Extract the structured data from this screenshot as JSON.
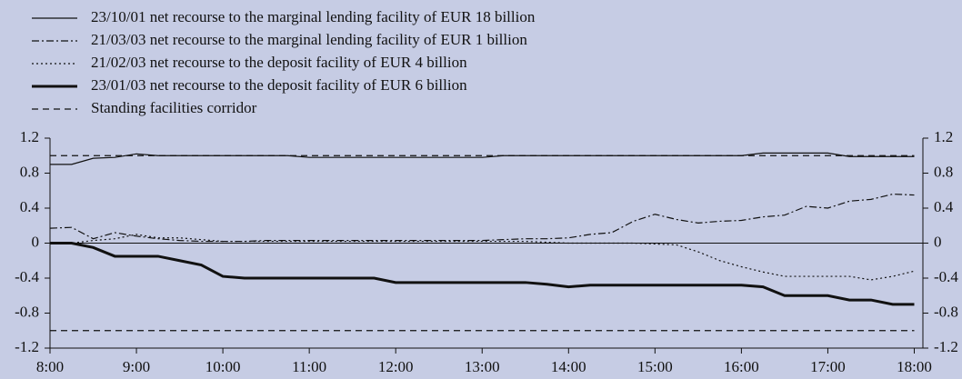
{
  "chart_data": {
    "type": "line",
    "x": [
      8,
      8.25,
      8.5,
      8.75,
      9,
      9.25,
      9.5,
      9.75,
      10,
      10.25,
      10.5,
      10.75,
      11,
      11.25,
      11.5,
      11.75,
      12,
      12.25,
      12.5,
      12.75,
      13,
      13.25,
      13.5,
      13.75,
      14,
      14.25,
      14.5,
      14.75,
      15,
      15.25,
      15.5,
      15.75,
      16,
      16.25,
      16.5,
      16.75,
      17,
      17.25,
      17.5,
      17.75,
      18
    ],
    "series": [
      {
        "name": "23/10/01 net recourse to the marginal lending facility of EUR 18 billion",
        "color": "#111",
        "dash": "none",
        "width": 1.2,
        "values": [
          0.9,
          0.9,
          0.97,
          0.98,
          1.02,
          1.0,
          1.0,
          1.0,
          1.0,
          1.0,
          1.0,
          1.0,
          0.98,
          0.98,
          0.98,
          0.98,
          0.98,
          0.98,
          0.98,
          0.98,
          0.98,
          1.0,
          1.0,
          1.0,
          1.0,
          1.0,
          1.0,
          1.0,
          1.0,
          1.0,
          1.0,
          1.0,
          1.0,
          1.03,
          1.03,
          1.03,
          1.03,
          0.99,
          0.99,
          0.99,
          0.99
        ]
      },
      {
        "name": "21/03/03 net recourse to the marginal lending facility of EUR 1 billion",
        "color": "#111",
        "dash": "8 3 2 3",
        "width": 1.2,
        "values": [
          0.17,
          0.18,
          0.05,
          0.12,
          0.08,
          0.05,
          0.03,
          0.02,
          0.02,
          0.02,
          0.03,
          0.03,
          0.03,
          0.03,
          0.03,
          0.03,
          0.03,
          0.03,
          0.03,
          0.03,
          0.03,
          0.04,
          0.05,
          0.05,
          0.06,
          0.1,
          0.12,
          0.25,
          0.33,
          0.27,
          0.23,
          0.25,
          0.26,
          0.3,
          0.32,
          0.42,
          0.4,
          0.48,
          0.5,
          0.56,
          0.55
        ]
      },
      {
        "name": "21/02/03 net recourse to the deposit facility of EUR 4 billion",
        "color": "#111",
        "dash": "2 3",
        "width": 1.2,
        "values": [
          0,
          0,
          0.03,
          0.05,
          0.1,
          0.06,
          0.06,
          0.04,
          0.02,
          0.02,
          0.02,
          0.02,
          0.02,
          0.02,
          0.02,
          0.02,
          0.02,
          0.02,
          0.02,
          0.02,
          0.02,
          0.02,
          0.02,
          0.01,
          0,
          0,
          0,
          0,
          -0.01,
          -0.02,
          -0.1,
          -0.2,
          -0.27,
          -0.33,
          -0.38,
          -0.38,
          -0.38,
          -0.38,
          -0.42,
          -0.38,
          -0.32
        ]
      },
      {
        "name": "23/01/03 net recourse to the deposit facility of EUR 6 billion",
        "color": "#111",
        "dash": "none",
        "width": 3,
        "values": [
          0,
          0,
          -0.05,
          -0.15,
          -0.15,
          -0.15,
          -0.2,
          -0.25,
          -0.38,
          -0.4,
          -0.4,
          -0.4,
          -0.4,
          -0.4,
          -0.4,
          -0.4,
          -0.45,
          -0.45,
          -0.45,
          -0.45,
          -0.45,
          -0.45,
          -0.45,
          -0.47,
          -0.5,
          -0.48,
          -0.48,
          -0.48,
          -0.48,
          -0.48,
          -0.48,
          -0.48,
          -0.48,
          -0.5,
          -0.6,
          -0.6,
          -0.6,
          -0.65,
          -0.65,
          -0.7,
          -0.7
        ]
      }
    ],
    "corridor": {
      "name": "Standing facilities corridor",
      "upper": 1,
      "lower": -1,
      "dash": "7 5"
    },
    "xlim": [
      8,
      18.1
    ],
    "xticks": [
      {
        "value": 8,
        "label": "8:00"
      },
      {
        "value": 9,
        "label": "9:00"
      },
      {
        "value": 10,
        "label": "10:00"
      },
      {
        "value": 11,
        "label": "11:00"
      },
      {
        "value": 12,
        "label": "12:00"
      },
      {
        "value": 13,
        "label": "13:00"
      },
      {
        "value": 14,
        "label": "14:00"
      },
      {
        "value": 15,
        "label": "15:00"
      },
      {
        "value": 16,
        "label": "16:00"
      },
      {
        "value": 17,
        "label": "17:00"
      },
      {
        "value": 18,
        "label": "18:00"
      }
    ],
    "ylim": [
      -1.2,
      1.2
    ],
    "yticks": [
      -1.2,
      -0.8,
      -0.4,
      0,
      0.4,
      0.8,
      1.2
    ],
    "y2lim": [
      -1.2,
      1.2
    ],
    "y2ticks": [
      -1.2,
      -0.8,
      -0.4,
      0,
      0.4,
      0.8,
      1.2
    ]
  }
}
